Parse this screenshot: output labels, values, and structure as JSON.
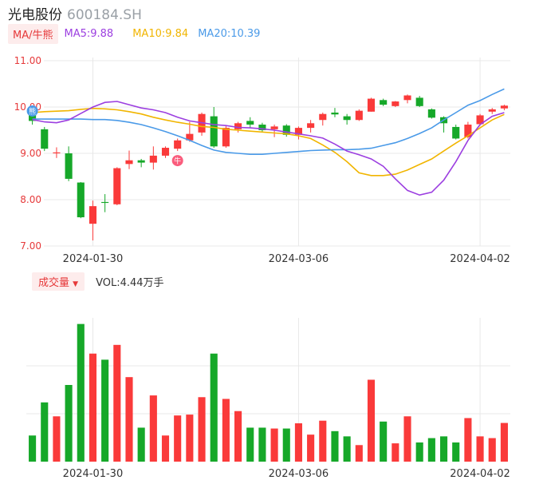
{
  "header": {
    "name": "光电股份",
    "code": "600184.SH"
  },
  "ma_legend": {
    "tag": "MA/牛熊",
    "ma5": "MA5:9.88",
    "ma10": "MA10:9.84",
    "ma20": "MA20:10.39"
  },
  "volume_legend": {
    "tag": "成交量",
    "value": "VOL:4.44万手"
  },
  "colors": {
    "up": "#fa3a3a",
    "down": "#16a829",
    "ma5": "#9c3fe0",
    "ma10": "#f1b500",
    "ma20": "#4a9ae8",
    "grid": "#e8e8e8"
  },
  "chart_data": [
    {
      "type": "candlestick",
      "y_ticks": [
        "11.00",
        "10.00",
        "9.00",
        "8.00",
        "7.00"
      ],
      "ylim": [
        7.0,
        11.0
      ],
      "x_labels": [
        {
          "index": 5,
          "label": "2024-01-30"
        },
        {
          "index": 22,
          "label": "2024-03-06"
        },
        {
          "index": 37,
          "label": "2024-04-02"
        }
      ],
      "markers": [
        {
          "index": 0,
          "kind": "bear",
          "icon": "熊"
        },
        {
          "index": 12,
          "kind": "bull",
          "icon": "牛"
        }
      ],
      "candles": [
        {
          "o": 9.85,
          "c": 9.7,
          "h": 9.88,
          "l": 9.62
        },
        {
          "o": 9.52,
          "c": 9.1,
          "h": 9.57,
          "l": 9.05
        },
        {
          "o": 9.0,
          "c": 9.02,
          "h": 9.13,
          "l": 8.9
        },
        {
          "o": 9.0,
          "c": 8.45,
          "h": 9.15,
          "l": 8.4
        },
        {
          "o": 8.37,
          "c": 7.62,
          "h": 8.38,
          "l": 7.6
        },
        {
          "o": 7.48,
          "c": 7.86,
          "h": 7.98,
          "l": 7.12
        },
        {
          "o": 7.95,
          "c": 7.93,
          "h": 8.12,
          "l": 7.73
        },
        {
          "o": 7.9,
          "c": 8.68,
          "h": 8.7,
          "l": 7.88
        },
        {
          "o": 8.77,
          "c": 8.85,
          "h": 9.06,
          "l": 8.66
        },
        {
          "o": 8.85,
          "c": 8.8,
          "h": 8.88,
          "l": 8.7
        },
        {
          "o": 8.8,
          "c": 8.95,
          "h": 9.15,
          "l": 8.65
        },
        {
          "o": 8.95,
          "c": 9.12,
          "h": 9.15,
          "l": 8.9
        },
        {
          "o": 9.1,
          "c": 9.28,
          "h": 9.32,
          "l": 9.05
        },
        {
          "o": 9.28,
          "c": 9.42,
          "h": 9.68,
          "l": 9.25
        },
        {
          "o": 9.45,
          "c": 9.85,
          "h": 9.88,
          "l": 9.38
        },
        {
          "o": 9.8,
          "c": 9.15,
          "h": 10.0,
          "l": 9.12
        },
        {
          "o": 9.15,
          "c": 9.55,
          "h": 9.6,
          "l": 9.12
        },
        {
          "o": 9.52,
          "c": 9.65,
          "h": 9.68,
          "l": 9.45
        },
        {
          "o": 9.7,
          "c": 9.62,
          "h": 9.78,
          "l": 9.55
        },
        {
          "o": 9.62,
          "c": 9.5,
          "h": 9.66,
          "l": 9.45
        },
        {
          "o": 9.52,
          "c": 9.58,
          "h": 9.62,
          "l": 9.35
        },
        {
          "o": 9.6,
          "c": 9.4,
          "h": 9.63,
          "l": 9.36
        },
        {
          "o": 9.4,
          "c": 9.55,
          "h": 9.58,
          "l": 9.3
        },
        {
          "o": 9.55,
          "c": 9.65,
          "h": 9.72,
          "l": 9.45
        },
        {
          "o": 9.72,
          "c": 9.85,
          "h": 9.88,
          "l": 9.6
        },
        {
          "o": 9.88,
          "c": 9.84,
          "h": 9.98,
          "l": 9.78
        },
        {
          "o": 9.8,
          "c": 9.72,
          "h": 9.85,
          "l": 9.62
        },
        {
          "o": 9.72,
          "c": 9.92,
          "h": 9.95,
          "l": 9.7
        },
        {
          "o": 9.9,
          "c": 10.18,
          "h": 10.2,
          "l": 9.9
        },
        {
          "o": 10.15,
          "c": 10.05,
          "h": 10.18,
          "l": 10.02
        },
        {
          "o": 10.02,
          "c": 10.12,
          "h": 10.13,
          "l": 10.0
        },
        {
          "o": 10.15,
          "c": 10.25,
          "h": 10.27,
          "l": 10.08
        },
        {
          "o": 10.2,
          "c": 10.02,
          "h": 10.24,
          "l": 10.0
        },
        {
          "o": 9.95,
          "c": 9.77,
          "h": 9.97,
          "l": 9.75
        },
        {
          "o": 9.78,
          "c": 9.65,
          "h": 9.8,
          "l": 9.45
        },
        {
          "o": 9.57,
          "c": 9.32,
          "h": 9.62,
          "l": 9.3
        },
        {
          "o": 9.35,
          "c": 9.62,
          "h": 9.68,
          "l": 9.32
        },
        {
          "o": 9.63,
          "c": 9.82,
          "h": 9.85,
          "l": 9.6
        },
        {
          "o": 9.9,
          "c": 9.95,
          "h": 9.98,
          "l": 9.85
        },
        {
          "o": 9.97,
          "c": 10.03,
          "h": 10.05,
          "l": 9.93
        }
      ],
      "ma5": [
        9.73,
        9.68,
        9.66,
        9.72,
        9.86,
        10.0,
        10.1,
        10.12,
        10.05,
        9.98,
        9.94,
        9.88,
        9.78,
        9.7,
        9.66,
        9.62,
        9.6,
        9.56,
        9.55,
        9.53,
        9.5,
        9.46,
        9.42,
        9.38,
        9.33,
        9.2,
        9.05,
        8.97,
        8.88,
        8.72,
        8.45,
        8.2,
        8.1,
        8.16,
        8.42,
        8.82,
        9.28,
        9.62,
        9.8,
        9.88
      ],
      "ma10": [
        9.88,
        9.9,
        9.91,
        9.92,
        9.95,
        9.97,
        9.96,
        9.94,
        9.9,
        9.85,
        9.78,
        9.72,
        9.67,
        9.63,
        9.58,
        9.56,
        9.52,
        9.5,
        9.48,
        9.46,
        9.44,
        9.42,
        9.38,
        9.32,
        9.18,
        9.02,
        8.82,
        8.58,
        8.52,
        8.52,
        8.55,
        8.64,
        8.76,
        8.88,
        9.05,
        9.22,
        9.38,
        9.55,
        9.72,
        9.84
      ],
      "ma20": [
        9.74,
        9.74,
        9.74,
        9.74,
        9.74,
        9.73,
        9.73,
        9.71,
        9.67,
        9.62,
        9.55,
        9.47,
        9.38,
        9.28,
        9.17,
        9.07,
        9.02,
        9.0,
        8.98,
        8.98,
        9.0,
        9.02,
        9.04,
        9.06,
        9.07,
        9.08,
        9.08,
        9.09,
        9.11,
        9.17,
        9.23,
        9.32,
        9.43,
        9.55,
        9.72,
        9.88,
        10.04,
        10.14,
        10.27,
        10.39
      ]
    },
    {
      "type": "bar",
      "name": "成交量",
      "unit": "万手",
      "last_value": 4.44,
      "values": [
        3.0,
        6.8,
        5.2,
        8.8,
        15.8,
        12.4,
        11.7,
        13.4,
        9.7,
        3.9,
        7.6,
        3.0,
        5.3,
        5.4,
        7.4,
        12.4,
        7.2,
        5.8,
        3.9,
        3.9,
        3.8,
        3.8,
        4.4,
        3.1,
        4.7,
        3.5,
        2.9,
        1.9,
        9.4,
        4.6,
        2.1,
        5.2,
        2.2,
        2.7,
        2.9,
        2.2,
        5.0,
        2.9,
        2.7,
        4.44
      ],
      "ylim": [
        0,
        16.5
      ]
    }
  ]
}
